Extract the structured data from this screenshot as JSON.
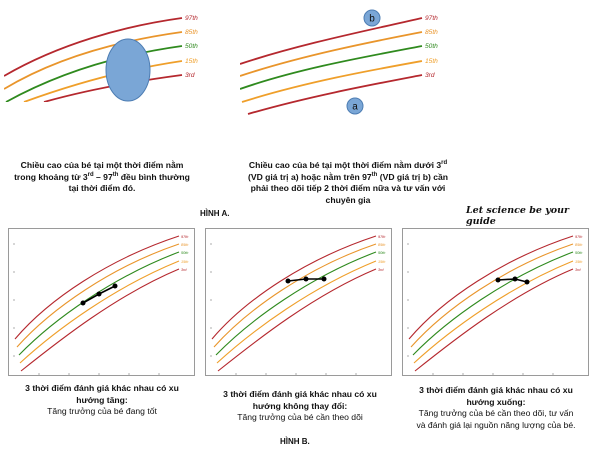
{
  "colors": {
    "p97": "#b5282e",
    "p85": "#e9952b",
    "p50": "#2f8a1e",
    "p15": "#ef9f2a",
    "p3": "#b5282e",
    "ellipse_fill": "#7aa6d6",
    "ellipse_stroke": "#4d7db3",
    "marker": "#000000"
  },
  "percentile_labels": [
    "97th",
    "85th",
    "50th",
    "15th",
    "3rd"
  ],
  "panel_a1": {
    "caption_line1": "Chiều cao của bé tại một thời điểm nằm",
    "caption_line2_pre": "trong khoảng từ 3",
    "caption_sup_rd": "rd",
    "caption_line2_mid": " – 97",
    "caption_sup_th": "th",
    "caption_line2_post": " đều bình thường",
    "caption_line3": "tại thời điểm đó."
  },
  "panel_a2": {
    "marker_a": "a",
    "marker_b": "b",
    "caption_line1_pre": "Chiều cao của bé tại một thời điểm nằm dưới 3",
    "caption_sup1": "rd",
    "caption_line2_pre": "(VD giá trị a) hoặc nằm trên 97",
    "caption_sup2": "th",
    "caption_line2_post": " (VD giá trị b) cần",
    "caption_line3": "phải theo dõi tiếp 2 thời điểm nữa và tư vấn với",
    "caption_line4": "chuyên gia"
  },
  "figure_a_label": "HÌNH A.",
  "tagline": "Let science be your guide",
  "panel_b1": {
    "caption_line1": "3 thời điểm đánh giá khác nhau có xu",
    "caption_line2": "hướng tăng:",
    "caption_line3": "Tăng trưởng của bé đang tốt"
  },
  "panel_b2": {
    "caption_line1": "3 thời điểm đánh giá khác nhau có xu",
    "caption_line2": "hướng không thay đổi:",
    "caption_line3": "Tăng trưởng của bé cần theo dõi"
  },
  "panel_b3": {
    "caption_line1": "3 thời điểm đánh giá khác nhau có xu",
    "caption_line2": "hướng xuống:",
    "caption_line3": "Tăng trưởng của bé cần theo dõi, tư vấn",
    "caption_line4": "và đánh giá lại nguồn năng lượng của bé."
  },
  "figure_b_label": "HÌNH B."
}
